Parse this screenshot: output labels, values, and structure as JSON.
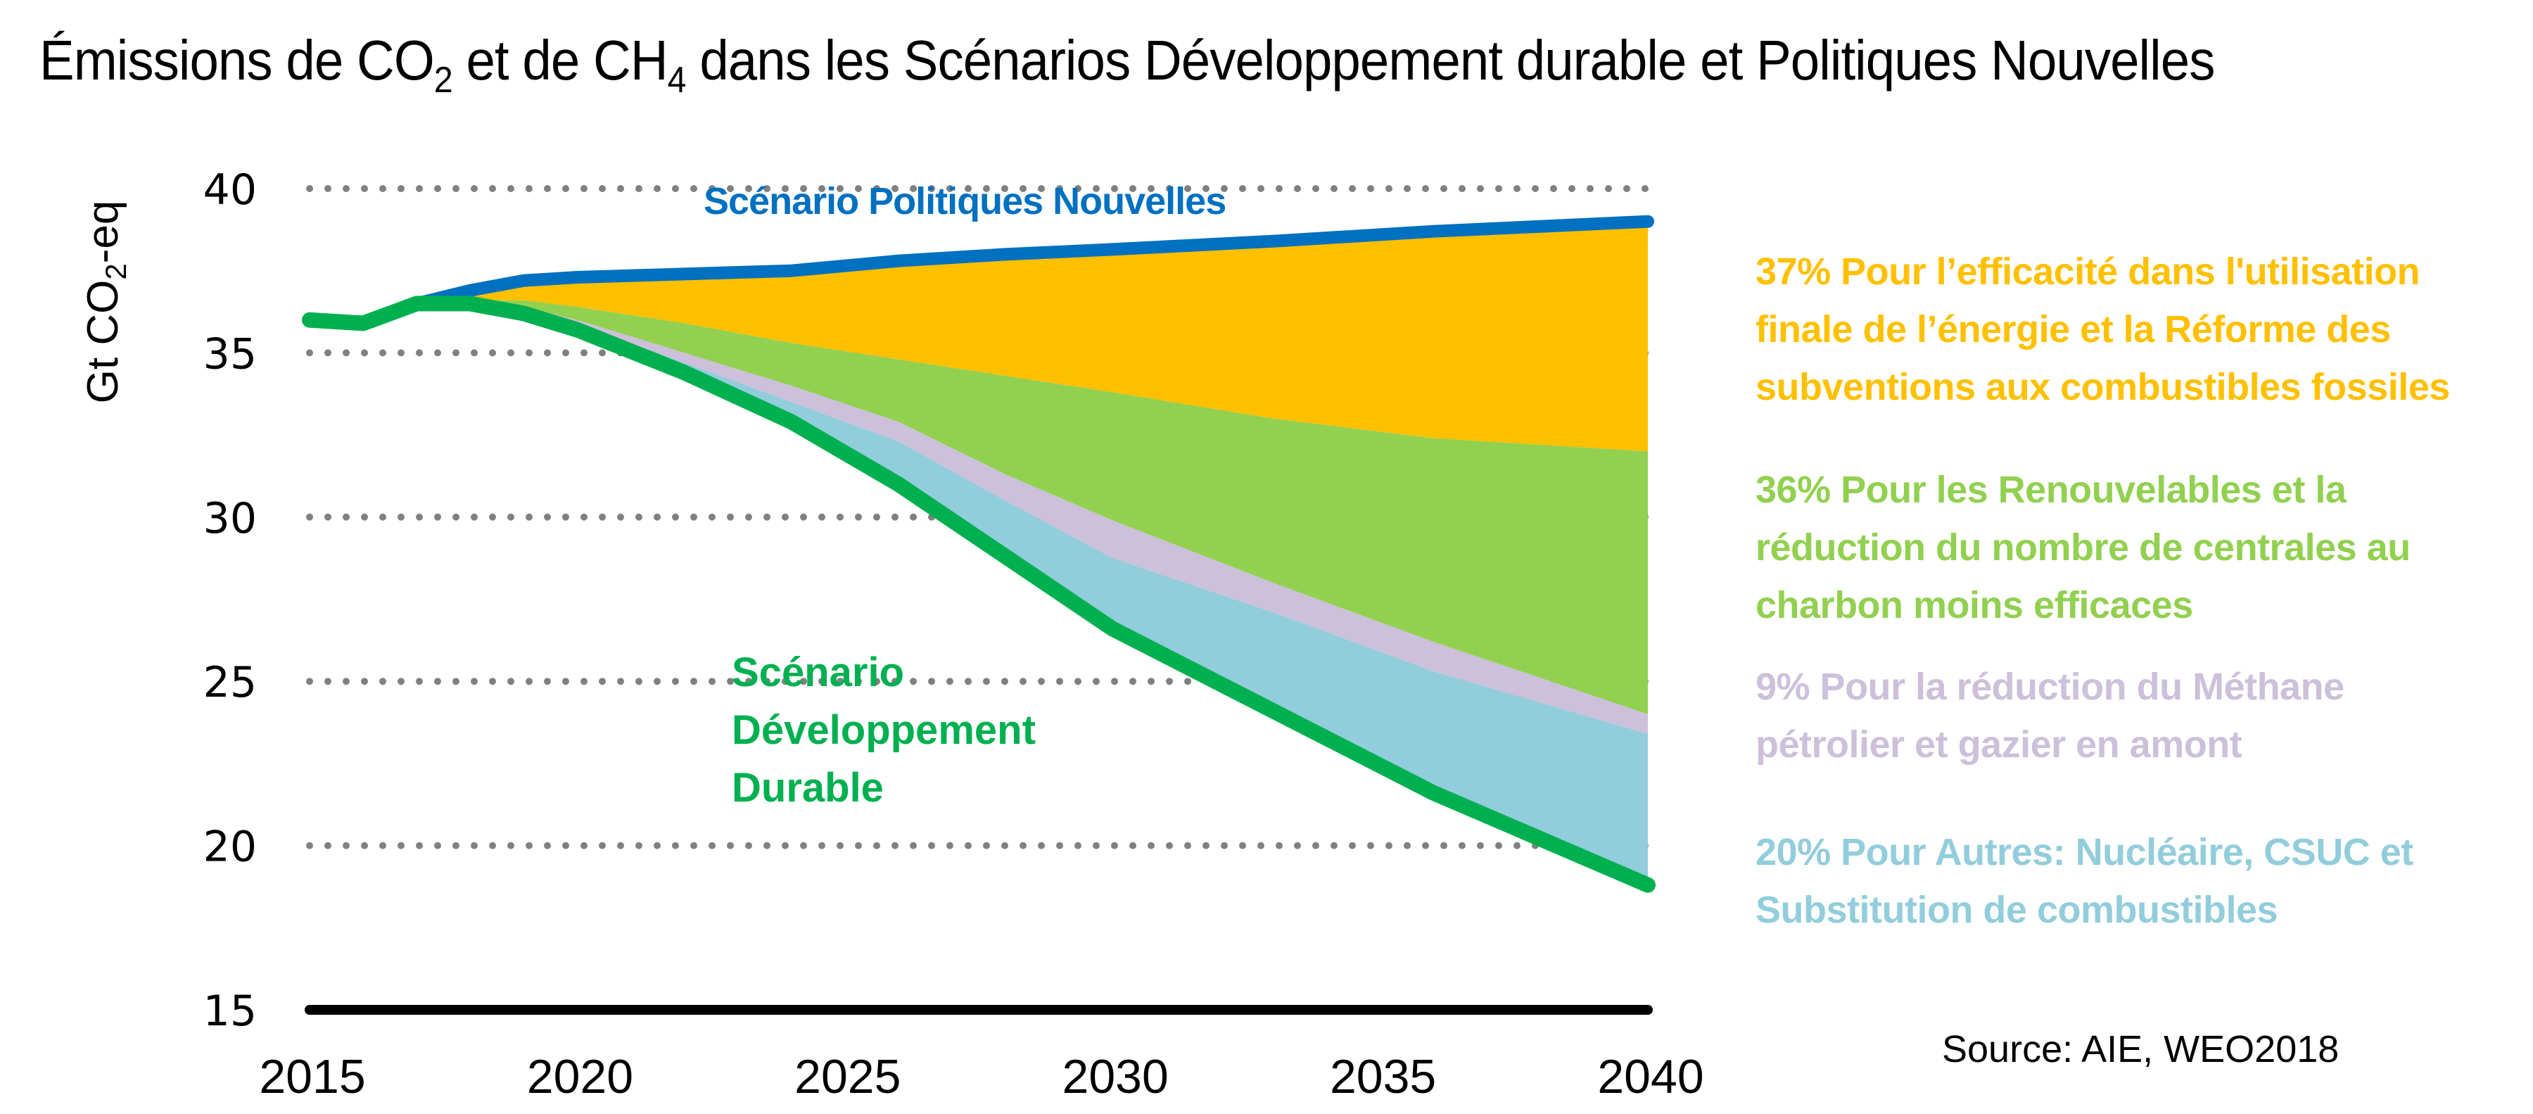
{
  "title": {
    "part1": "Émissions de CO",
    "sub1": "2",
    "part2": " et de CH",
    "sub2": "4",
    "part3": " dans les Scénarios Développement durable et Politiques Nouvelles"
  },
  "y_axis_label": {
    "part1": "Gt CO",
    "sub": "2",
    "part2": "-eq"
  },
  "annotations": {
    "nps": "Scénario Politiques Nouvelles",
    "sds": [
      "Scénario",
      "Développement",
      "Durable"
    ]
  },
  "legend": [
    {
      "id": "efficiency",
      "color": "#FFC000",
      "lines": [
        "37% Pour l’efficacité dans l'utilisation",
        "finale de l’énergie et la Réforme des",
        "subventions aux combustibles fossiles"
      ]
    },
    {
      "id": "renewables",
      "color": "#92D050",
      "lines": [
        "36% Pour les Renouvelables et la",
        "réduction du nombre de  centrales au",
        "charbon moins efficaces"
      ]
    },
    {
      "id": "methane",
      "color": "#CCC0DA",
      "lines": [
        "9% Pour la réduction du Méthane",
        "pétrolier et gazier en amont"
      ]
    },
    {
      "id": "other",
      "color": "#92CDDC",
      "lines": [
        "20% Pour Autres: Nucléaire, CSUC et",
        "Substitution de combustibles"
      ]
    }
  ],
  "source": "Source: AIE, WEO2018",
  "chart_data": {
    "type": "area",
    "title": "Émissions de CO2 et de CH4 dans les Scénarios Développement durable et Politiques Nouvelles",
    "xlabel": "",
    "ylabel": "Gt CO2-eq",
    "xlim": [
      2015,
      2040
    ],
    "ylim": [
      15,
      40
    ],
    "x_ticks": [
      2015,
      2020,
      2025,
      2030,
      2035,
      2040
    ],
    "y_ticks": [
      15,
      20,
      25,
      30,
      35,
      40
    ],
    "grid": "horizontal dotted",
    "x": [
      2015,
      2016,
      2017,
      2018,
      2019,
      2020,
      2022,
      2024,
      2026,
      2028,
      2030,
      2033,
      2036,
      2040
    ],
    "series": [
      {
        "name": "Scénario Politiques Nouvelles",
        "kind": "line",
        "color": "#0070C0",
        "values": [
          36.0,
          35.9,
          36.5,
          36.9,
          37.2,
          37.3,
          37.4,
          37.5,
          37.8,
          38.0,
          38.15,
          38.4,
          38.7,
          39.0
        ]
      },
      {
        "name": "Bordure efficacité",
        "kind": "boundary",
        "values": [
          36.0,
          35.9,
          36.5,
          36.6,
          36.6,
          36.4,
          35.9,
          35.3,
          34.8,
          34.3,
          33.8,
          33.0,
          32.4,
          32.0
        ]
      },
      {
        "name": "Bordure renouvelables",
        "kind": "boundary",
        "values": [
          36.0,
          35.9,
          36.5,
          36.5,
          36.4,
          36.0,
          35.0,
          34.0,
          32.9,
          31.3,
          29.9,
          28.0,
          26.2,
          24.0
        ]
      },
      {
        "name": "Bordure méthane",
        "kind": "boundary",
        "values": [
          36.0,
          35.9,
          36.5,
          36.5,
          36.3,
          35.9,
          34.7,
          33.5,
          32.3,
          30.5,
          28.75,
          27.1,
          25.3,
          23.4
        ]
      },
      {
        "name": "Scénario Développement Durable",
        "kind": "line",
        "color": "#00B050",
        "values": [
          36.0,
          35.9,
          36.5,
          36.5,
          36.2,
          35.7,
          34.4,
          32.9,
          31.0,
          28.8,
          26.6,
          24.1,
          21.6,
          18.8
        ]
      }
    ],
    "bands": [
      {
        "name": "37% Efficacité & réforme des subventions",
        "from": "Scénario Politiques Nouvelles",
        "to": "Bordure efficacité",
        "color": "#FFC000",
        "share_pct": 37
      },
      {
        "name": "36% Renouvelables & centrales au charbon",
        "from": "Bordure efficacité",
        "to": "Bordure renouvelables",
        "color": "#92D050",
        "share_pct": 36
      },
      {
        "name": "9% Méthane pétrolier et gazier",
        "from": "Bordure renouvelables",
        "to": "Bordure méthane",
        "color": "#CCC0DA",
        "share_pct": 9
      },
      {
        "name": "20% Autres: Nucléaire, CSUC, substitution",
        "from": "Bordure méthane",
        "to": "Scénario Développement Durable",
        "color": "#92CDDC",
        "share_pct": 20
      }
    ]
  }
}
